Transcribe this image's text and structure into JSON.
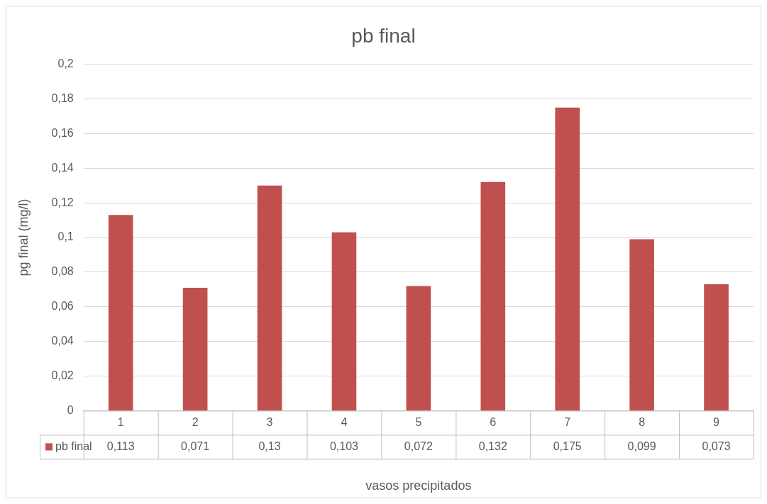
{
  "chart_data": {
    "type": "bar",
    "title": "pb final",
    "xlabel": "vasos precipitados",
    "ylabel": "pg final (mg/l)",
    "categories": [
      "1",
      "2",
      "3",
      "4",
      "5",
      "6",
      "7",
      "8",
      "9"
    ],
    "series": [
      {
        "name": "pb final",
        "color": "#c0504d",
        "values": [
          0.113,
          0.071,
          0.13,
          0.103,
          0.072,
          0.132,
          0.175,
          0.099,
          0.073
        ],
        "value_labels": [
          "0,113",
          "0,071",
          "0,13",
          "0,103",
          "0,072",
          "0,132",
          "0,175",
          "0,099",
          "0,073"
        ]
      }
    ],
    "ylim": [
      0,
      0.2
    ],
    "yticks": [
      {
        "value": 0,
        "label": "0"
      },
      {
        "value": 0.02,
        "label": "0,02"
      },
      {
        "value": 0.04,
        "label": "0,04"
      },
      {
        "value": 0.06,
        "label": "0,06"
      },
      {
        "value": 0.08,
        "label": "0,08"
      },
      {
        "value": 0.1,
        "label": "0,1"
      },
      {
        "value": 0.12,
        "label": "0,12"
      },
      {
        "value": 0.14,
        "label": "0,14"
      },
      {
        "value": 0.16,
        "label": "0,16"
      },
      {
        "value": 0.18,
        "label": "0,18"
      },
      {
        "value": 0.2,
        "label": "0,2"
      }
    ],
    "grid": "y",
    "legend": "bottom"
  }
}
